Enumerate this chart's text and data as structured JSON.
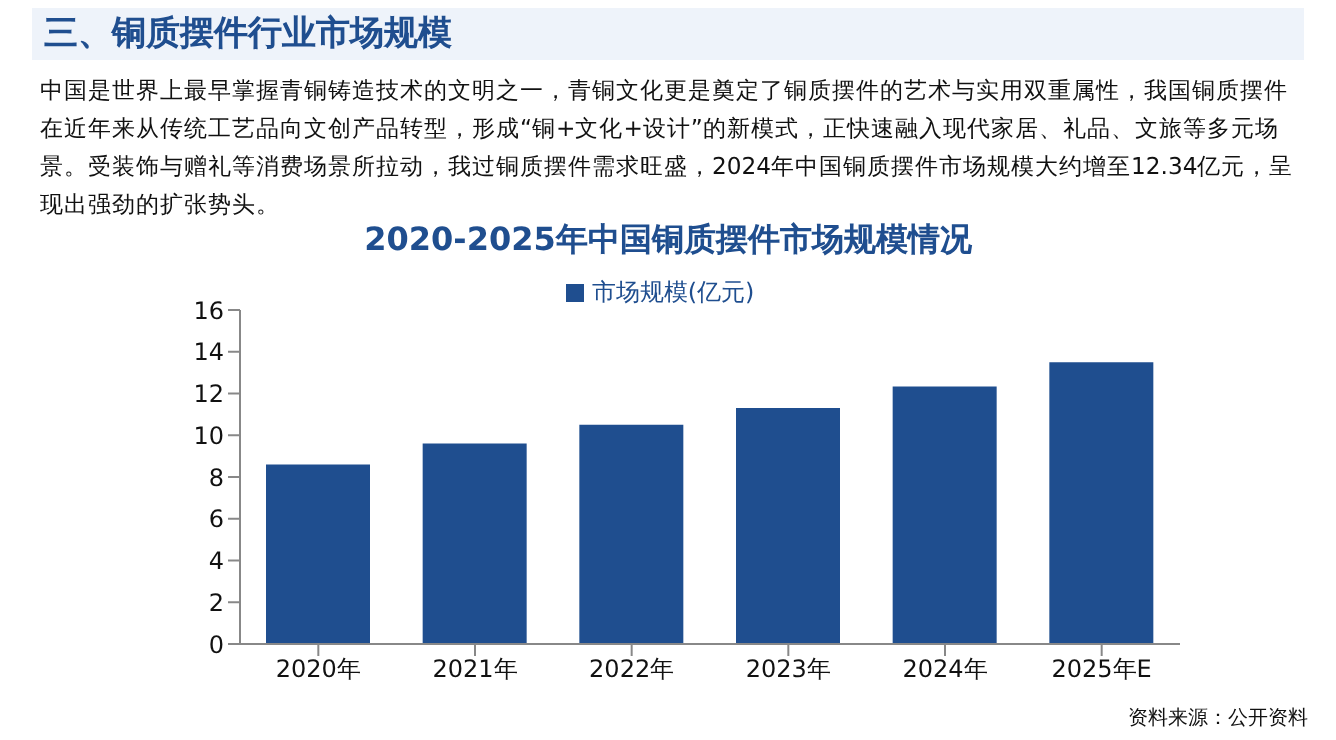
{
  "chart_data": {
    "type": "bar",
    "title": "2020-2025年中国铜质摆件市场规模情况",
    "annotations": [
      "三、铜质摆件行业市场规模",
      "中国是世界上最早掌握青铜铸造技术的文明之一，青铜文化更是奠定了铜质摆件的艺术与实用双重属性，我国铜质摆件在近年来从传统工艺品向文创产品转型，形成“铜+文化+设计”的新模式，正快速融入现代家居、礼品、文旅等多元场景。受装饰与赠礼等消费场景所拉动，我过铜质摆件需求旺盛，2024年中国铜质摆件市场规模大约增至12.34亿元，呈现出强劲的扩张势头。",
      "资料来源：公开资料"
    ],
    "categories": [
      "2020年",
      "2021年",
      "2022年",
      "2023年",
      "2024年",
      "2025年E"
    ],
    "series": [
      {
        "name": "市场规模(亿元)",
        "color": "#1f4e8f",
        "values": [
          8.6,
          9.6,
          10.5,
          11.3,
          12.34,
          13.5
        ]
      }
    ],
    "ylim": [
      0,
      16
    ],
    "yticks": [
      0,
      2,
      4,
      6,
      8,
      10,
      12,
      14,
      16
    ],
    "grid": false,
    "legend": "top"
  }
}
